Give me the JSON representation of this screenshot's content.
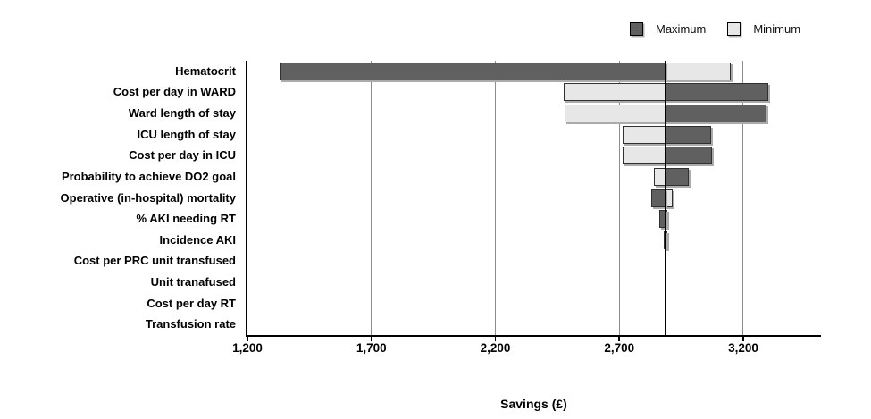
{
  "colors": {
    "bar_maximum": "#606060",
    "bar_minimum": "#e7e7e7",
    "bar_border": "#303030",
    "baseline": "#000000",
    "gridline": "#8c8c8c",
    "axis": "#000000",
    "background": "#ffffff"
  },
  "legend": {
    "position": "top-right",
    "items": [
      {
        "label": "Maximum",
        "swatch": "dark-gray-square"
      },
      {
        "label": "Minimum",
        "swatch": "light-gray-square"
      }
    ]
  },
  "chart_data": {
    "type": "bar",
    "subtype": "tornado",
    "orientation": "horizontal",
    "title": "",
    "xlabel": "Savings (£)",
    "ylabel": "",
    "xlim": [
      1200,
      3510
    ],
    "xticks": [
      1200,
      1700,
      2200,
      2700,
      3200
    ],
    "tick_labels": [
      "1,200",
      "1,700",
      "2,200",
      "2,700",
      "3,200"
    ],
    "grid": true,
    "baseline": 2887,
    "categories": [
      "Hematocrit",
      "Cost per day in WARD",
      "Ward length of stay",
      "ICU length of stay",
      "Cost per day in ICU",
      "Probability to achieve DO2 goal",
      "Operative (in-hospital) mortality",
      "% AKI needing RT",
      "Incidence AKI",
      "Cost per PRC unit transfused",
      "Unit tranafused",
      "Cost per day RT",
      "Transfusion rate"
    ],
    "series": [
      {
        "name": "Maximum",
        "color": "#606060",
        "values": [
          1330,
          3300,
          3295,
          3070,
          3075,
          2980,
          2830,
          2860,
          2880,
          2887,
          2887,
          2887,
          2887
        ]
      },
      {
        "name": "Minimum",
        "color": "#e7e7e7",
        "values": [
          3150,
          2475,
          2480,
          2715,
          2715,
          2840,
          2915,
          2895,
          2893,
          2887,
          2887,
          2887,
          2887
        ]
      }
    ],
    "legend_position": "top-right"
  }
}
